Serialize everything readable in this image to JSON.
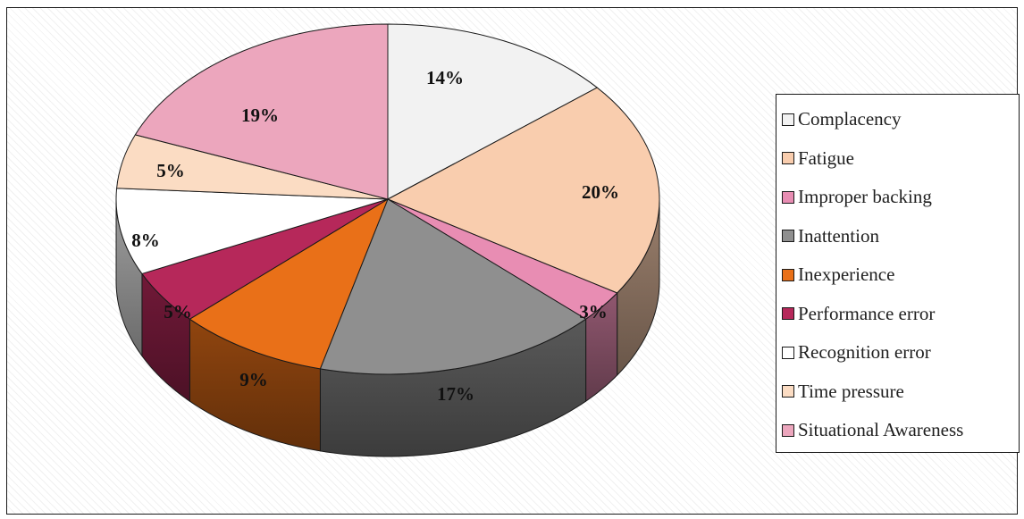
{
  "chart_data": {
    "type": "pie",
    "title": "",
    "legend_position": "right",
    "categories": [
      "Complacency",
      "Fatigue",
      "Improper backing",
      "Inattention",
      "Inexperience",
      "Performance error",
      "Recognition error",
      "Time pressure",
      "Situational Awareness"
    ],
    "values": [
      14,
      20,
      3,
      17,
      9,
      5,
      8,
      5,
      19
    ],
    "labels": [
      "14%",
      "20%",
      "3%",
      "17%",
      "9%",
      "5%",
      "8%",
      "5%",
      "19%"
    ],
    "colors": [
      "#f2f2f2",
      "#f9cdae",
      "#e88db3",
      "#8f8f8f",
      "#e97018",
      "#b6285a",
      "#ffffff",
      "#fbdcc3",
      "#eca6bd"
    ],
    "style": "3d"
  }
}
